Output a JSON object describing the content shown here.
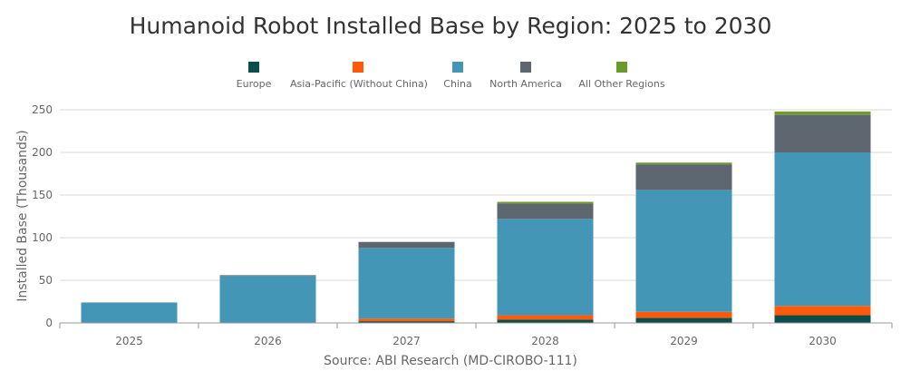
{
  "chart_data": {
    "type": "bar",
    "stacked": true,
    "title": "Humanoid Robot Installed Base by Region: 2025 to 2030",
    "ylabel": "Installed Base (Thousands)",
    "xlabel": "",
    "source": "Source: ABI Research (MD-CIROBO-111)",
    "categories": [
      "2025",
      "2026",
      "2027",
      "2028",
      "2029",
      "2030"
    ],
    "ylim": [
      0,
      250
    ],
    "yticks": [
      0,
      50,
      100,
      150,
      200,
      250
    ],
    "grid": true,
    "legend_position": "top",
    "series": [
      {
        "name": "Europe",
        "color": "#0b4d4b",
        "values": [
          0,
          0,
          2,
          4,
          6,
          9
        ]
      },
      {
        "name": "Asia-Pacific (Without China)",
        "color": "#ff5a0a",
        "values": [
          0,
          0,
          3,
          5,
          7,
          11
        ]
      },
      {
        "name": "China",
        "color": "#4396b5",
        "values": [
          24,
          55,
          83,
          113,
          143,
          180
        ]
      },
      {
        "name": "North America",
        "color": "#5e6670",
        "values": [
          0,
          1,
          7,
          18,
          30,
          44
        ]
      },
      {
        "name": "All Other Regions",
        "color": "#6b9a2c",
        "values": [
          0,
          0,
          0,
          2,
          2,
          4
        ]
      }
    ]
  }
}
